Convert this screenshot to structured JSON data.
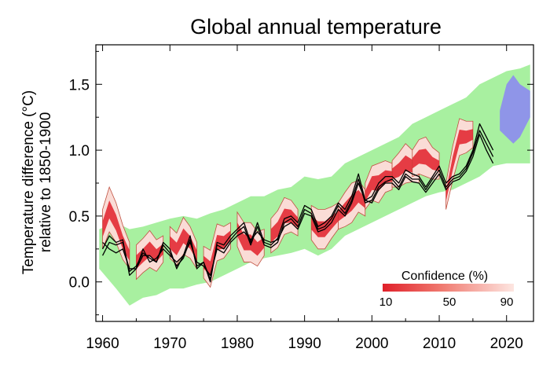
{
  "chart_data": {
    "type": "line",
    "title": "Global annual temperature",
    "ylabel_line1": "Temperature difference (°C)",
    "ylabel_line2": "relative to 1850-1900",
    "xlabel": "",
    "xlim": [
      1959,
      2024
    ],
    "ylim": [
      -0.3,
      1.8
    ],
    "x_ticks": [
      1960,
      1970,
      1980,
      1990,
      2000,
      2010,
      2020
    ],
    "y_ticks": [
      0.0,
      0.5,
      1.0,
      1.5
    ],
    "y_tick_labels": [
      "0.0",
      "0.5",
      "1.0",
      "1.5"
    ],
    "grid": false,
    "legend": {
      "title": "Confidence (%)",
      "ticks": [
        "10",
        "50",
        "90"
      ],
      "placement": "bottom-right"
    },
    "colors": {
      "envelope": "#a8f0a0",
      "forecast_core": "#e0202a",
      "forecast_edge": "#fadcd6",
      "outline": "#c05040",
      "observations": "#000000",
      "future_region": "#8f95e8"
    },
    "envelope": {
      "x": [
        1959.5,
        1962,
        1964,
        1966,
        1968,
        1970,
        1972,
        1974,
        1976,
        1978,
        1980,
        1982,
        1984,
        1986,
        1988,
        1990,
        1992,
        1994,
        1996,
        1998,
        2000,
        2002,
        2004,
        2006,
        2008,
        2010,
        2012,
        2014,
        2016,
        2018,
        2020,
        2022,
        2023.5
      ],
      "upper": [
        0.4,
        0.45,
        0.4,
        0.42,
        0.45,
        0.48,
        0.5,
        0.48,
        0.52,
        0.55,
        0.6,
        0.65,
        0.65,
        0.7,
        0.72,
        0.8,
        0.78,
        0.8,
        0.9,
        0.95,
        1.0,
        1.05,
        1.1,
        1.2,
        1.25,
        1.3,
        1.35,
        1.4,
        1.5,
        1.55,
        1.6,
        1.62,
        1.65
      ],
      "lower": [
        0.1,
        -0.05,
        -0.18,
        -0.12,
        -0.1,
        -0.05,
        -0.05,
        -0.02,
        0.0,
        0.05,
        0.1,
        0.15,
        0.18,
        0.2,
        0.22,
        0.25,
        0.2,
        0.25,
        0.35,
        0.4,
        0.45,
        0.5,
        0.55,
        0.6,
        0.65,
        0.68,
        0.7,
        0.75,
        0.8,
        0.88,
        0.9,
        0.9,
        0.9
      ]
    },
    "future_region": {
      "x": [
        2019,
        2020,
        2021,
        2022,
        2023.5
      ],
      "upper": [
        1.3,
        1.5,
        1.57,
        1.5,
        1.45
      ],
      "lower": [
        1.15,
        1.1,
        1.05,
        1.1,
        1.25
      ]
    },
    "hindcasts": [
      {
        "x": [
          1960,
          1961,
          1962,
          1963,
          1964
        ],
        "mid": [
          0.4,
          0.55,
          0.45,
          0.3,
          0.2
        ],
        "half": [
          0.15,
          0.17,
          0.15,
          0.13,
          0.1
        ]
      },
      {
        "x": [
          1965,
          1966,
          1967,
          1968,
          1969
        ],
        "mid": [
          0.15,
          0.2,
          0.25,
          0.2,
          0.25
        ],
        "half": [
          0.13,
          0.13,
          0.14,
          0.12,
          0.1
        ]
      },
      {
        "x": [
          1970,
          1971,
          1972,
          1973,
          1974
        ],
        "mid": [
          0.3,
          0.25,
          0.35,
          0.3,
          0.2
        ],
        "half": [
          0.12,
          0.12,
          0.14,
          0.12,
          0.1
        ]
      },
      {
        "x": [
          1975,
          1976,
          1977,
          1978,
          1979
        ],
        "mid": [
          0.15,
          0.1,
          0.3,
          0.3,
          0.35
        ],
        "half": [
          0.12,
          0.14,
          0.14,
          0.12,
          0.1
        ]
      },
      {
        "x": [
          1980,
          1981,
          1982,
          1983,
          1984
        ],
        "mid": [
          0.4,
          0.3,
          0.3,
          0.25,
          0.3
        ],
        "half": [
          0.13,
          0.15,
          0.15,
          0.13,
          0.1
        ]
      },
      {
        "x": [
          1985,
          1986,
          1987,
          1988,
          1989
        ],
        "mid": [
          0.35,
          0.4,
          0.5,
          0.5,
          0.45
        ],
        "half": [
          0.13,
          0.14,
          0.14,
          0.12,
          0.1
        ]
      },
      {
        "x": [
          1991,
          1992,
          1993,
          1994,
          1995
        ],
        "mid": [
          0.45,
          0.4,
          0.4,
          0.45,
          0.5
        ],
        "half": [
          0.13,
          0.15,
          0.15,
          0.12,
          0.1
        ]
      },
      {
        "x": [
          1995,
          1996,
          1997,
          1998,
          1999
        ],
        "mid": [
          0.5,
          0.55,
          0.6,
          0.65,
          0.6
        ],
        "half": [
          0.1,
          0.13,
          0.15,
          0.12,
          0.1
        ]
      },
      {
        "x": [
          1999,
          2000,
          2001,
          2002,
          2003
        ],
        "mid": [
          0.65,
          0.75,
          0.75,
          0.8,
          0.8
        ],
        "half": [
          0.1,
          0.13,
          0.15,
          0.12,
          0.1
        ]
      },
      {
        "x": [
          2003,
          2004,
          2005,
          2006,
          2007
        ],
        "mid": [
          0.82,
          0.85,
          0.9,
          0.88,
          0.85
        ],
        "half": [
          0.1,
          0.13,
          0.15,
          0.12,
          0.1
        ]
      },
      {
        "x": [
          2006,
          2007,
          2008,
          2009,
          2010
        ],
        "mid": [
          0.9,
          0.95,
          0.95,
          0.9,
          0.88
        ],
        "half": [
          0.1,
          0.13,
          0.15,
          0.12,
          0.1
        ]
      },
      {
        "x": [
          2011,
          2012,
          2013,
          2014,
          2015
        ],
        "mid": [
          0.65,
          0.9,
          1.1,
          1.1,
          1.12
        ],
        "half": [
          0.1,
          0.13,
          0.14,
          0.12,
          0.1
        ]
      }
    ],
    "observations": [
      {
        "name": "",
        "x": [
          1960,
          1961,
          1962,
          1963,
          1964,
          1965,
          1966,
          1967,
          1968,
          1969,
          1970,
          1971,
          1972,
          1973,
          1974,
          1975,
          1976,
          1977,
          1978,
          1979,
          1980,
          1981,
          1982,
          1983,
          1984,
          1985,
          1986,
          1987,
          1988,
          1989,
          1990,
          1991,
          1992,
          1993,
          1994,
          1995,
          1996,
          1997,
          1998,
          1999,
          2000,
          2001,
          2002,
          2003,
          2004,
          2005,
          2006,
          2007,
          2008,
          2009,
          2010,
          2011,
          2012,
          2013,
          2014,
          2015,
          2016,
          2017,
          2018
        ],
        "y": [
          0.25,
          0.35,
          0.3,
          0.32,
          0.05,
          0.1,
          0.2,
          0.2,
          0.15,
          0.3,
          0.25,
          0.1,
          0.2,
          0.35,
          0.1,
          0.15,
          0.0,
          0.3,
          0.28,
          0.35,
          0.4,
          0.45,
          0.3,
          0.45,
          0.3,
          0.28,
          0.33,
          0.48,
          0.5,
          0.45,
          0.58,
          0.55,
          0.42,
          0.45,
          0.5,
          0.6,
          0.55,
          0.65,
          0.82,
          0.62,
          0.65,
          0.75,
          0.8,
          0.8,
          0.75,
          0.85,
          0.82,
          0.8,
          0.72,
          0.8,
          0.88,
          0.75,
          0.8,
          0.82,
          0.88,
          1.0,
          1.2,
          1.1,
          1.0
        ]
      },
      {
        "name": "",
        "x": [
          1960,
          1961,
          1962,
          1963,
          1964,
          1965,
          1966,
          1967,
          1968,
          1969,
          1970,
          1971,
          1972,
          1973,
          1974,
          1975,
          1976,
          1977,
          1978,
          1979,
          1980,
          1981,
          1982,
          1983,
          1984,
          1985,
          1986,
          1987,
          1988,
          1989,
          1990,
          1991,
          1992,
          1993,
          1994,
          1995,
          1996,
          1997,
          1998,
          1999,
          2000,
          2001,
          2002,
          2003,
          2004,
          2005,
          2006,
          2007,
          2008,
          2009,
          2010,
          2011,
          2012,
          2013,
          2014,
          2015,
          2016,
          2017,
          2018
        ],
        "y": [
          0.2,
          0.3,
          0.28,
          0.3,
          0.08,
          0.12,
          0.22,
          0.18,
          0.15,
          0.28,
          0.22,
          0.12,
          0.18,
          0.32,
          0.12,
          0.15,
          0.02,
          0.28,
          0.25,
          0.32,
          0.38,
          0.42,
          0.28,
          0.42,
          0.28,
          0.26,
          0.3,
          0.45,
          0.48,
          0.42,
          0.55,
          0.52,
          0.4,
          0.42,
          0.48,
          0.58,
          0.52,
          0.62,
          0.78,
          0.6,
          0.62,
          0.72,
          0.76,
          0.78,
          0.72,
          0.82,
          0.78,
          0.78,
          0.7,
          0.78,
          0.85,
          0.72,
          0.78,
          0.8,
          0.86,
          0.98,
          1.15,
          1.05,
          0.95
        ]
      },
      {
        "name": "",
        "x": [
          1960,
          1961,
          1962,
          1963,
          1964,
          1965,
          1966,
          1967,
          1968,
          1969,
          1970,
          1971,
          1972,
          1973,
          1974,
          1975,
          1976,
          1977,
          1978,
          1979,
          1980,
          1981,
          1982,
          1983,
          1984,
          1985,
          1986,
          1987,
          1988,
          1989,
          1990,
          1991,
          1992,
          1993,
          1994,
          1995,
          1996,
          1997,
          1998,
          1999,
          2000,
          2001,
          2002,
          2003,
          2004,
          2005,
          2006,
          2007,
          2008,
          2009,
          2010,
          2011,
          2012,
          2013,
          2014,
          2015,
          2016,
          2017,
          2018
        ],
        "y": [
          0.3,
          0.25,
          0.22,
          0.25,
          0.1,
          0.1,
          0.25,
          0.15,
          0.18,
          0.25,
          0.2,
          0.15,
          0.2,
          0.3,
          0.15,
          0.12,
          0.05,
          0.25,
          0.22,
          0.3,
          0.35,
          0.38,
          0.32,
          0.38,
          0.32,
          0.3,
          0.32,
          0.42,
          0.45,
          0.4,
          0.52,
          0.5,
          0.38,
          0.4,
          0.45,
          0.55,
          0.5,
          0.6,
          0.75,
          0.62,
          0.6,
          0.7,
          0.75,
          0.75,
          0.7,
          0.8,
          0.76,
          0.75,
          0.68,
          0.75,
          0.82,
          0.7,
          0.76,
          0.78,
          0.84,
          0.95,
          1.12,
          1.0,
          0.9
        ]
      }
    ]
  }
}
